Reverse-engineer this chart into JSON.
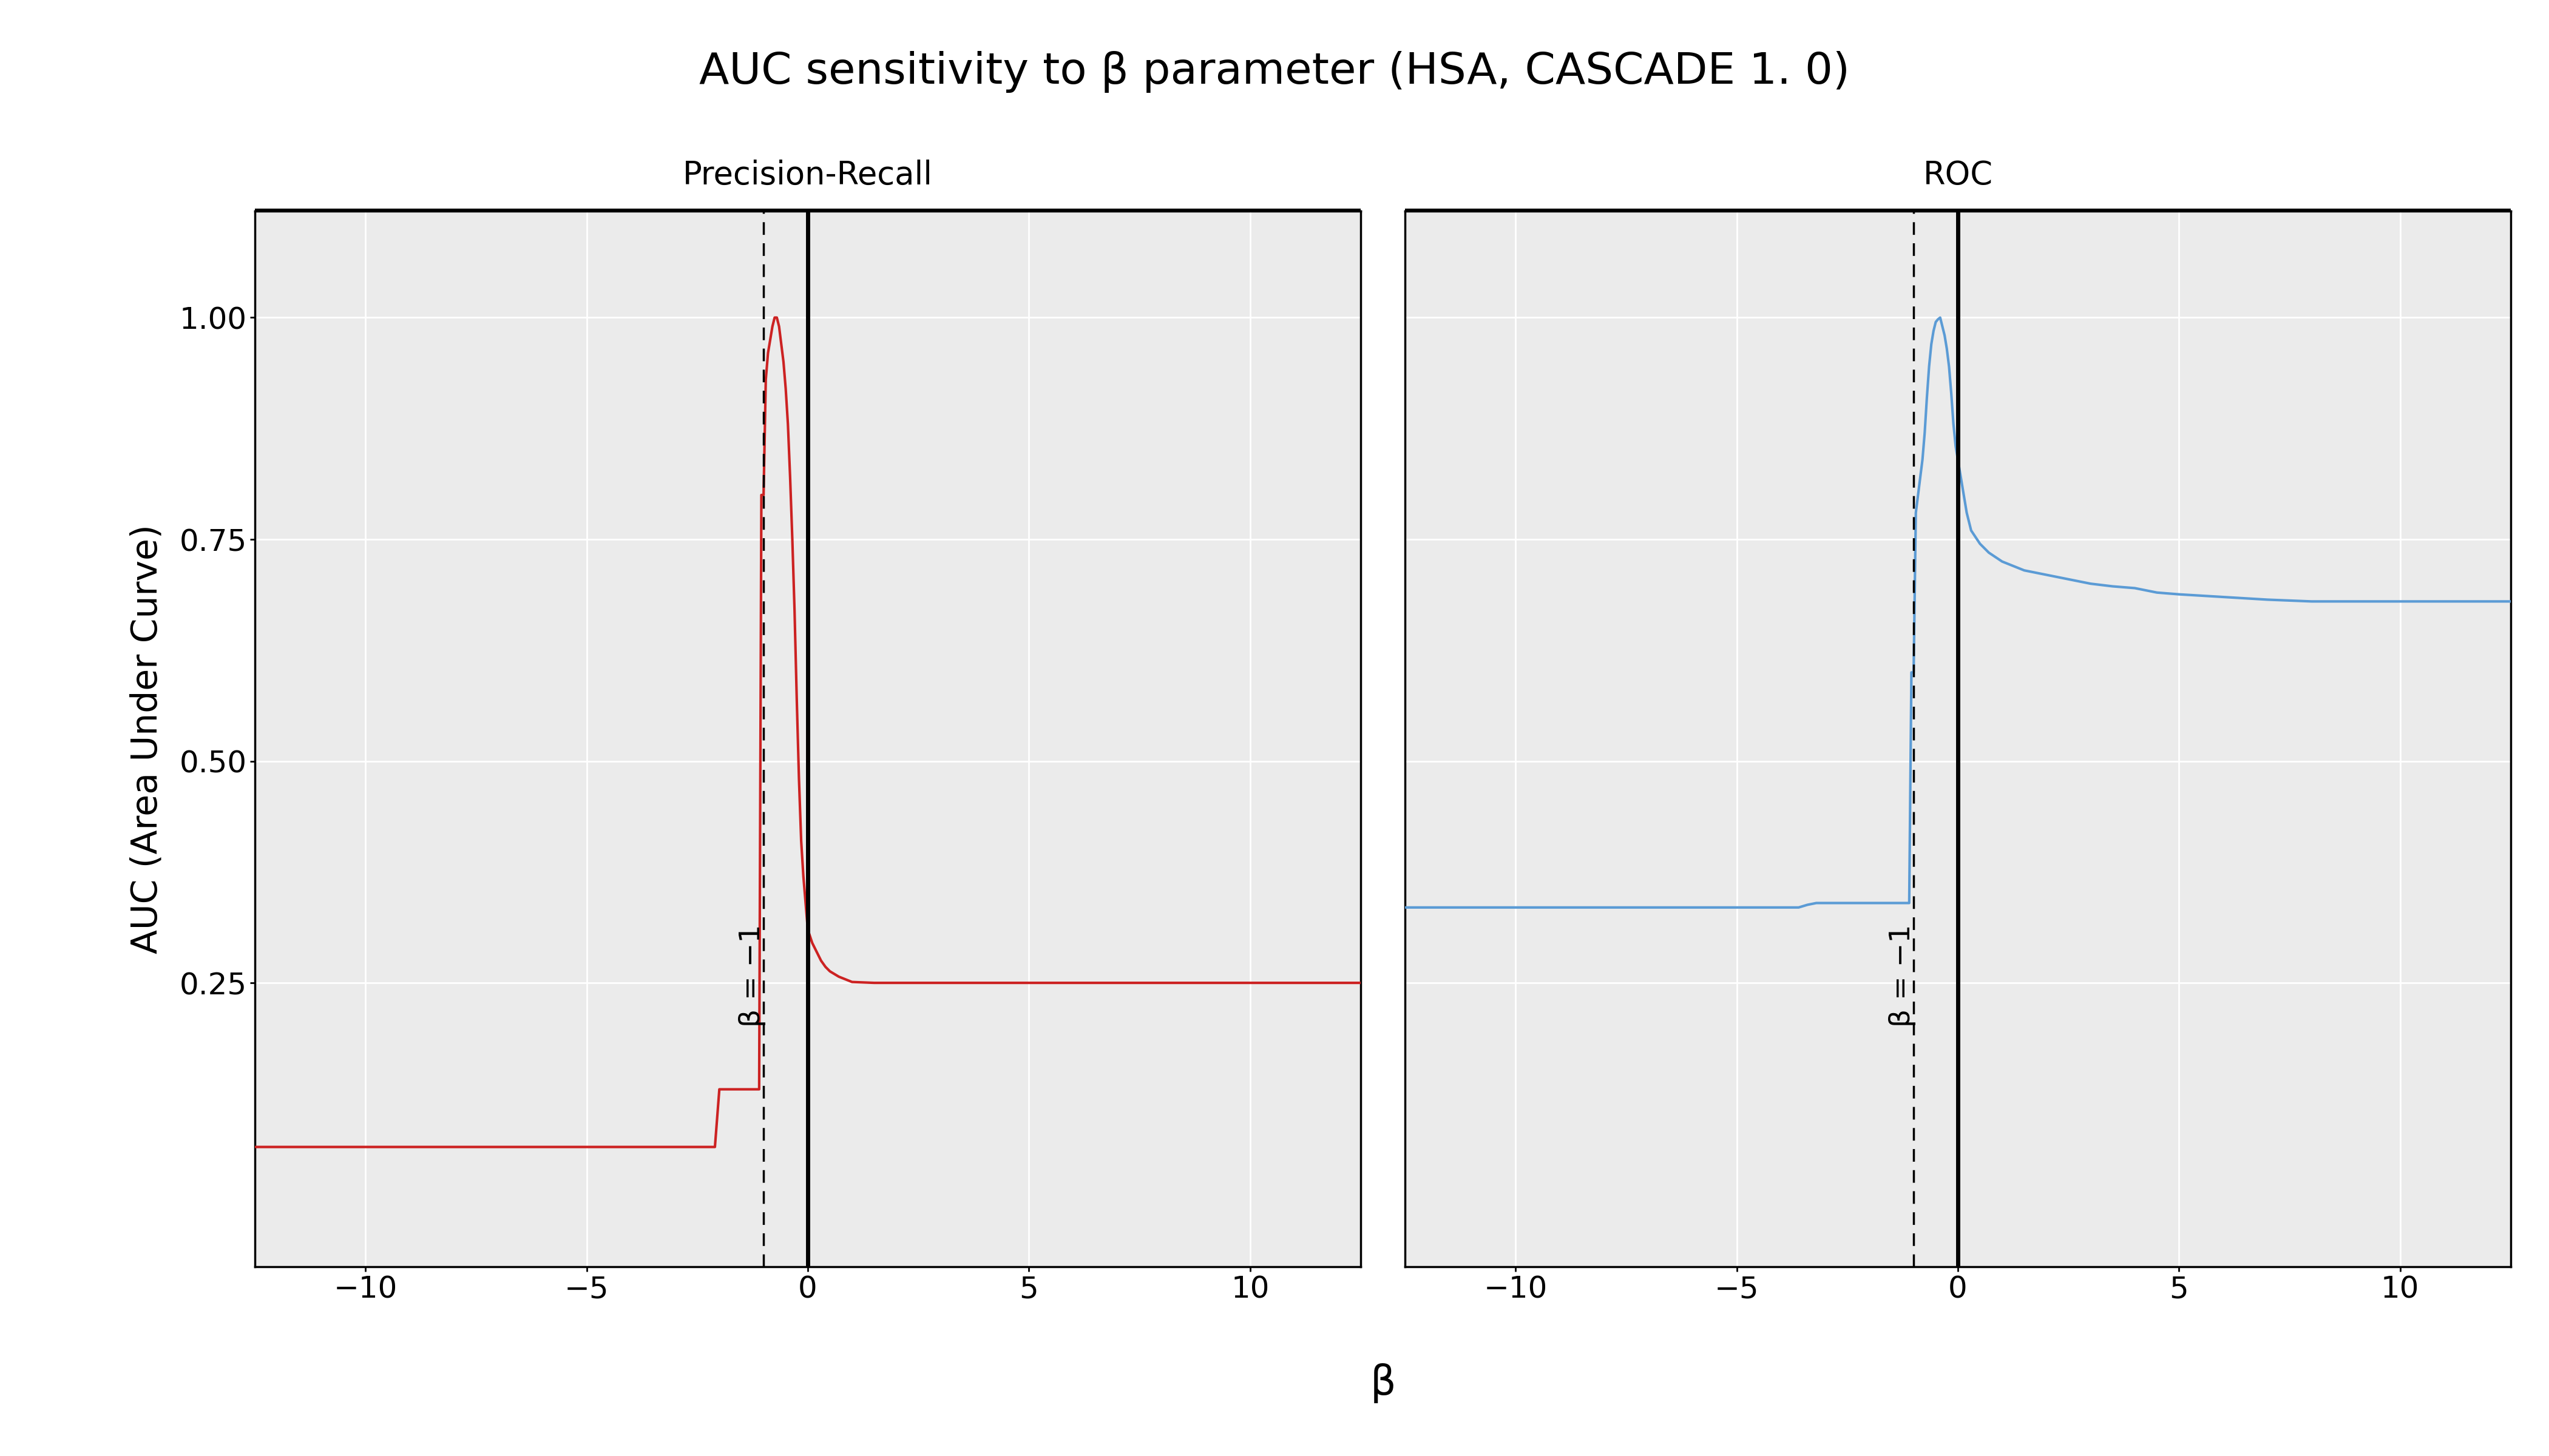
{
  "title": "AUC sensitivity to β parameter (HSA, CASCADE 1. 0)",
  "xlabel": "β",
  "ylabel": "AUC (Area Under Curve)",
  "panel_left_title": "Precision-Recall",
  "panel_right_title": "ROC",
  "vline_dashed_x": -1,
  "vline_solid_x": 0,
  "vline_label": "β = −1",
  "xlim": [
    -12.5,
    12.5
  ],
  "ylim": [
    -0.07,
    1.12
  ],
  "xticks": [
    -10,
    -5,
    0,
    5,
    10
  ],
  "yticks": [
    0.25,
    0.5,
    0.75,
    1.0
  ],
  "background_color": "#ffffff",
  "panel_bg_color": "#ebebeb",
  "grid_color": "#ffffff",
  "line_color_left": "#cc2222",
  "line_color_right": "#5b9bd5",
  "title_fontsize": 52,
  "label_fontsize": 42,
  "tick_fontsize": 36,
  "panel_title_fontsize": 38,
  "vline_label_fontsize": 34,
  "pr_x": [
    -12.5,
    -11.0,
    -10.0,
    -9.0,
    -8.0,
    -7.0,
    -6.5,
    -6.0,
    -5.5,
    -5.0,
    -4.5,
    -4.0,
    -3.8,
    -3.6,
    -3.4,
    -3.2,
    -3.0,
    -2.8,
    -2.6,
    -2.4,
    -2.2,
    -2.1,
    -2.0,
    -1.9,
    -1.8,
    -1.7,
    -1.6,
    -1.5,
    -1.4,
    -1.3,
    -1.2,
    -1.1,
    -1.05,
    -1.0,
    -0.95,
    -0.9,
    -0.85,
    -0.8,
    -0.75,
    -0.7,
    -0.65,
    -0.6,
    -0.55,
    -0.5,
    -0.45,
    -0.4,
    -0.35,
    -0.3,
    -0.25,
    -0.2,
    -0.15,
    -0.1,
    -0.05,
    0.0,
    0.1,
    0.2,
    0.3,
    0.4,
    0.5,
    0.6,
    0.7,
    0.8,
    0.9,
    1.0,
    1.5,
    2.0,
    2.5,
    3.0,
    3.5,
    4.0,
    5.0,
    6.0,
    7.0,
    8.0,
    9.0,
    10.0,
    11.0,
    12.0,
    12.5
  ],
  "pr_y": [
    0.065,
    0.065,
    0.065,
    0.065,
    0.065,
    0.065,
    0.065,
    0.065,
    0.065,
    0.065,
    0.065,
    0.065,
    0.065,
    0.065,
    0.065,
    0.065,
    0.065,
    0.065,
    0.065,
    0.065,
    0.065,
    0.065,
    0.13,
    0.13,
    0.13,
    0.13,
    0.13,
    0.13,
    0.13,
    0.13,
    0.13,
    0.13,
    0.8,
    0.8,
    0.93,
    0.96,
    0.975,
    0.99,
    1.0,
    1.0,
    0.99,
    0.97,
    0.95,
    0.92,
    0.88,
    0.82,
    0.75,
    0.67,
    0.57,
    0.48,
    0.41,
    0.37,
    0.34,
    0.31,
    0.295,
    0.285,
    0.275,
    0.268,
    0.263,
    0.26,
    0.257,
    0.255,
    0.253,
    0.251,
    0.25,
    0.25,
    0.25,
    0.25,
    0.25,
    0.25,
    0.25,
    0.25,
    0.25,
    0.25,
    0.25,
    0.25,
    0.25,
    0.25,
    0.25
  ],
  "roc_x": [
    -12.5,
    -11.0,
    -10.0,
    -9.0,
    -8.0,
    -7.0,
    -6.5,
    -6.0,
    -5.5,
    -5.0,
    -4.8,
    -4.6,
    -4.4,
    -4.2,
    -4.0,
    -3.8,
    -3.6,
    -3.4,
    -3.2,
    -3.0,
    -2.8,
    -2.6,
    -2.4,
    -2.2,
    -2.0,
    -1.8,
    -1.6,
    -1.4,
    -1.2,
    -1.1,
    -1.05,
    -1.0,
    -0.95,
    -0.9,
    -0.85,
    -0.8,
    -0.75,
    -0.7,
    -0.65,
    -0.6,
    -0.55,
    -0.5,
    -0.45,
    -0.4,
    -0.35,
    -0.3,
    -0.25,
    -0.2,
    -0.15,
    -0.1,
    -0.05,
    0.0,
    0.1,
    0.2,
    0.3,
    0.5,
    0.7,
    1.0,
    1.5,
    2.0,
    2.5,
    3.0,
    3.5,
    4.0,
    4.5,
    5.0,
    6.0,
    7.0,
    8.0,
    9.0,
    10.0,
    11.0,
    12.0,
    12.5
  ],
  "roc_y": [
    0.335,
    0.335,
    0.335,
    0.335,
    0.335,
    0.335,
    0.335,
    0.335,
    0.335,
    0.335,
    0.335,
    0.335,
    0.335,
    0.335,
    0.335,
    0.335,
    0.335,
    0.338,
    0.34,
    0.34,
    0.34,
    0.34,
    0.34,
    0.34,
    0.34,
    0.34,
    0.34,
    0.34,
    0.34,
    0.34,
    0.6,
    0.6,
    0.78,
    0.8,
    0.82,
    0.84,
    0.87,
    0.91,
    0.945,
    0.97,
    0.985,
    0.995,
    0.998,
    1.0,
    0.99,
    0.98,
    0.965,
    0.945,
    0.915,
    0.88,
    0.855,
    0.84,
    0.81,
    0.78,
    0.76,
    0.745,
    0.735,
    0.725,
    0.715,
    0.71,
    0.705,
    0.7,
    0.697,
    0.695,
    0.69,
    0.688,
    0.685,
    0.682,
    0.68,
    0.68,
    0.68,
    0.68,
    0.68,
    0.68
  ]
}
